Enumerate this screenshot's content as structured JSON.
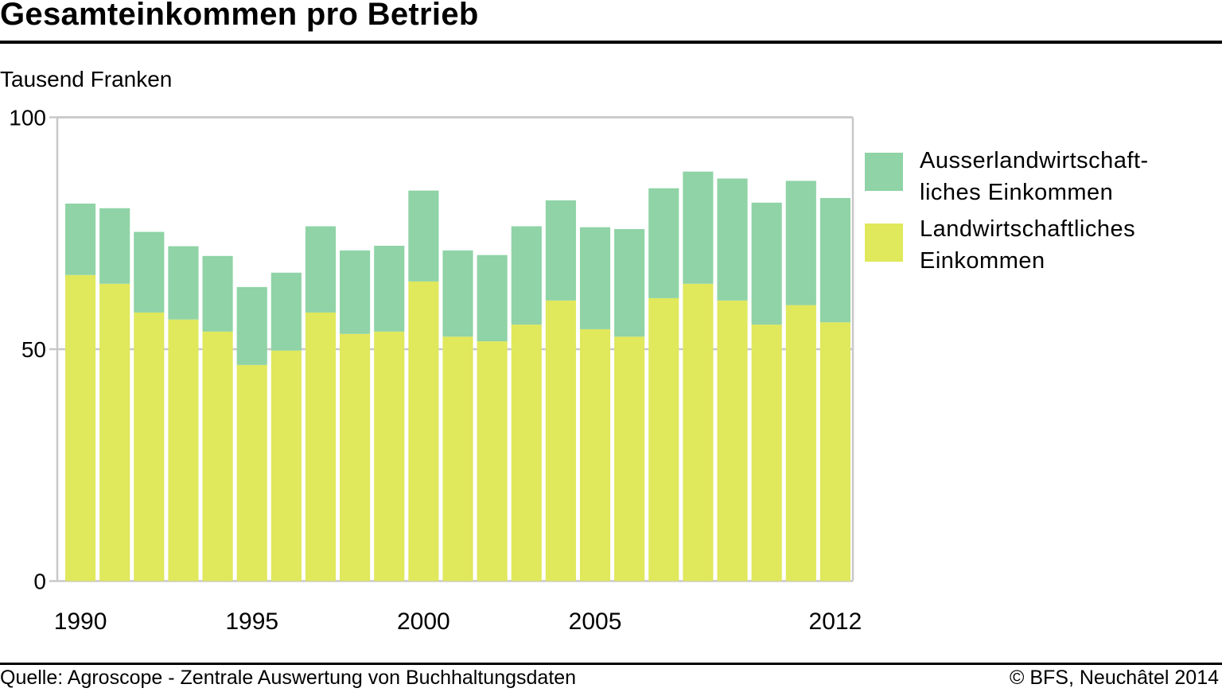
{
  "header": {
    "title": "Gesamteinkommen pro Betrieb",
    "unit_label": "Tausend Franken"
  },
  "footer": {
    "source": "Quelle: Agroscope - Zentrale Auswertung von Buchhaltungsdaten",
    "copyright": "© BFS, Neuchâtel 2014"
  },
  "colors": {
    "ausserlandwirtschaftlich": "#8fd3a6",
    "landwirtschaftlich": "#e0e85c",
    "grid": "#c8c8c8"
  },
  "chart_data": {
    "type": "bar",
    "stacked": true,
    "title": "Gesamteinkommen pro Betrieb",
    "ylabel": "Tausend Franken",
    "xlabel": "",
    "ylim": [
      0,
      100
    ],
    "yticks": [
      0,
      50,
      100
    ],
    "xtick_labels": [
      "1990",
      "1995",
      "2000",
      "2005",
      "2012"
    ],
    "grid": "horizontal at 50",
    "legend_position": "right",
    "categories": [
      "1990",
      "1991",
      "1992",
      "1993",
      "1994",
      "1995",
      "1996",
      "1997",
      "1998",
      "1999",
      "2000",
      "2001",
      "2002",
      "2003",
      "2004",
      "2005",
      "2006",
      "2007",
      "2008",
      "2009",
      "2010",
      "2011",
      "2012"
    ],
    "series": [
      {
        "name": "Landwirtschaftliches Einkommen",
        "legend_lines": [
          "Landwirtschaftliches",
          "Einkommen"
        ],
        "color": "#e0e85c",
        "values": [
          66.0,
          64.1,
          57.9,
          56.4,
          53.8,
          46.6,
          49.7,
          57.9,
          53.3,
          53.8,
          64.6,
          52.7,
          51.7,
          55.3,
          60.5,
          54.3,
          52.7,
          61.0,
          64.1,
          60.5,
          55.3,
          59.5,
          55.8
        ]
      },
      {
        "name": "Ausserlandwirtschaftliches Einkommen",
        "legend_lines": [
          "Ausserlandwirtschaft-",
          "liches Einkommen"
        ],
        "color": "#8fd3a6",
        "values": [
          15.4,
          16.3,
          17.4,
          15.8,
          16.3,
          16.8,
          16.8,
          18.6,
          18.0,
          18.5,
          19.6,
          18.6,
          18.6,
          21.2,
          21.6,
          22.0,
          23.2,
          23.7,
          24.2,
          26.3,
          26.3,
          26.8,
          26.8
        ]
      }
    ]
  }
}
